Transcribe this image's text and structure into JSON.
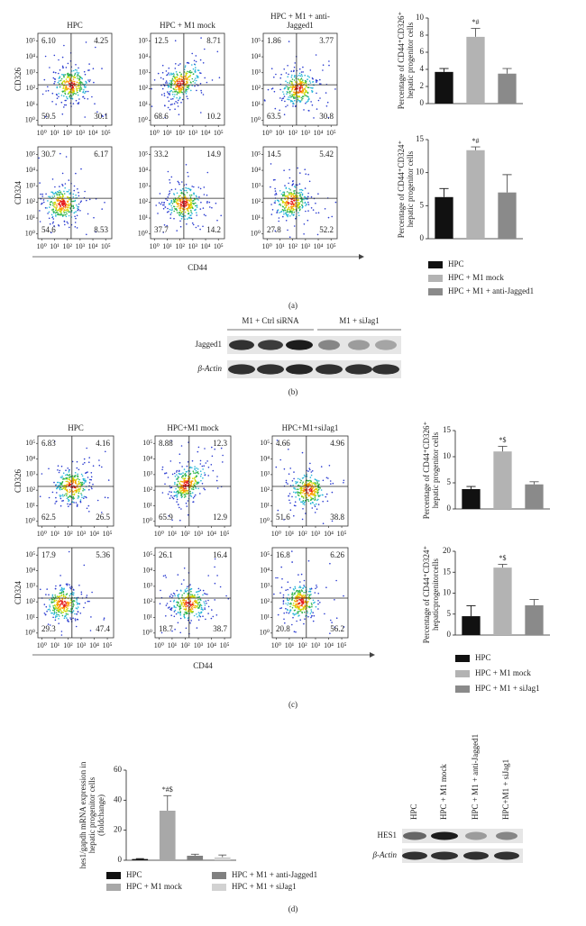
{
  "chart_data": [
    {
      "type": "bar",
      "ylabel": "Percentage of CD44⁺CD326⁺ hepatic progenitor cells",
      "values": [
        3.7,
        7.8,
        3.5
      ],
      "errors": [
        0.4,
        1.0,
        0.6
      ],
      "annotations": [
        null,
        "*#",
        null
      ],
      "colors": [
        "#111111",
        "#b3b3b3",
        "#8a8a8a"
      ],
      "ylim": [
        0,
        10
      ],
      "yticks": [
        0,
        2,
        4,
        6,
        8,
        10
      ]
    },
    {
      "type": "bar",
      "ylabel": "Percentage of CD44⁺CD324⁺ hepatic progenitor cells",
      "categories": [
        "HPC",
        "HPC + M1 mock",
        "HPC + M1 + anti-Jagged1"
      ],
      "values": [
        6.3,
        13.4,
        7.0
      ],
      "errors": [
        1.3,
        0.5,
        2.7
      ],
      "annotations": [
        null,
        "*#",
        null
      ],
      "colors": [
        "#111111",
        "#b3b3b3",
        "#8a8a8a"
      ],
      "ylim": [
        0,
        15
      ],
      "yticks": [
        0,
        5,
        10,
        15
      ]
    },
    {
      "type": "bar",
      "ylabel": "Percentage of CD44⁺CD326⁺ hepatic progenitor cells",
      "values": [
        3.8,
        11.0,
        4.7
      ],
      "errors": [
        0.5,
        1.0,
        0.5
      ],
      "annotations": [
        null,
        "*$",
        null
      ],
      "colors": [
        "#111111",
        "#b3b3b3",
        "#8a8a8a"
      ],
      "ylim": [
        0,
        15
      ],
      "yticks": [
        0,
        5,
        10,
        15
      ]
    },
    {
      "type": "bar",
      "ylabel": "Percentage of CD44⁺CD324⁺ hepaticprogenitorcells",
      "categories": [
        "HPC",
        "HPC + M1 mock",
        "HPC + M1 + siJag1"
      ],
      "values": [
        4.5,
        16.1,
        7.1
      ],
      "errors": [
        2.5,
        0.8,
        1.4
      ],
      "annotations": [
        null,
        "*$",
        null
      ],
      "colors": [
        "#111111",
        "#b3b3b3",
        "#8a8a8a"
      ],
      "ylim": [
        0,
        20
      ],
      "yticks": [
        0,
        5,
        10,
        15,
        20
      ]
    },
    {
      "type": "bar",
      "ylabel": "hes1/gapdh mRNA expression in hepatic progenitor cells (foldchange)",
      "categories": [
        "HPC",
        "HPC + M1 mock",
        "HPC + M1 + anti-Jagged1",
        "HPC + M1 + siJag1"
      ],
      "values": [
        0.8,
        33,
        3,
        2
      ],
      "errors": [
        0.3,
        10,
        1,
        1.5
      ],
      "annotations": [
        null,
        "*#$",
        null,
        null
      ],
      "colors": [
        "#111111",
        "#a8a8a8",
        "#808080",
        "#d2d2d2"
      ],
      "ylim": [
        0,
        60
      ],
      "yticks": [
        0,
        20,
        40,
        60
      ]
    }
  ],
  "flow_a": {
    "columns": [
      "HPC",
      "HPC + M1 mock",
      "HPC + M1 + anti-Jagged1"
    ],
    "rows": [
      {
        "marker": "CD326",
        "quadrants": [
          [
            "6.10",
            "4.25",
            "59.5",
            "30.1"
          ],
          [
            "12.5",
            "8.71",
            "68.6",
            "10.2"
          ],
          [
            "1.86",
            "3.77",
            "63.5",
            "30.8"
          ]
        ]
      },
      {
        "marker": "CD324",
        "quadrants": [
          [
            "30.7",
            "6.17",
            "54.6",
            "8.53"
          ],
          [
            "33.2",
            "14.9",
            "37.7",
            "14.2"
          ],
          [
            "14.5",
            "5.42",
            "27.8",
            "52.2"
          ]
        ]
      }
    ],
    "x_label": "CD44",
    "lim": [
      0.5,
      300000
    ],
    "ticks": [
      {
        "value": 1,
        "label": "10⁰"
      },
      {
        "value": 10,
        "label": "10¹"
      },
      {
        "value": 100,
        "label": "10²"
      },
      {
        "value": 1000,
        "label": "10³"
      },
      {
        "value": 10000,
        "label": "10⁴"
      },
      {
        "value": 100000,
        "label": "10⁵"
      }
    ]
  },
  "flow_c": {
    "columns": [
      "HPC",
      "HPC+M1 mock",
      "HPC+M1+siJag1"
    ],
    "rows": [
      {
        "marker": "CD326",
        "quadrants": [
          [
            "6.83",
            "4.16",
            "62.5",
            "26.5"
          ],
          [
            "8.88",
            "12.3",
            "65.9",
            "12.9"
          ],
          [
            "4.66",
            "4.96",
            "51.6",
            "38.8"
          ]
        ]
      },
      {
        "marker": "CD324",
        "quadrants": [
          [
            "17.9",
            "5.36",
            "29.3",
            "47.4"
          ],
          [
            "26.1",
            "16.4",
            "18.7",
            "38.7"
          ],
          [
            "16.8",
            "6.26",
            "20.8",
            "56.2"
          ]
        ]
      }
    ],
    "x_label": "CD44",
    "lim": [
      0.5,
      300000
    ],
    "ticks": [
      {
        "value": 1,
        "label": "10⁰"
      },
      {
        "value": 10,
        "label": "10¹"
      },
      {
        "value": 100,
        "label": "10²"
      },
      {
        "value": 1000,
        "label": "10³"
      },
      {
        "value": 10000,
        "label": "10⁴"
      },
      {
        "value": 100000,
        "label": "10⁵"
      }
    ]
  },
  "blot_b": {
    "groups": [
      "M1 + Ctrl siRNA",
      "M1 + siJag1"
    ],
    "rows": [
      "Jagged1",
      "β-Actin"
    ]
  },
  "blot_d": {
    "lanes": [
      "HPC",
      "HPC + M1 mock",
      "HPC + M1 + anti-Jagged1",
      "HPC+M1 + siJag1"
    ],
    "rows": [
      "HES1",
      "β-Actin"
    ]
  },
  "panel_labels": [
    "(a)",
    "(b)",
    "(c)",
    "(d)"
  ]
}
